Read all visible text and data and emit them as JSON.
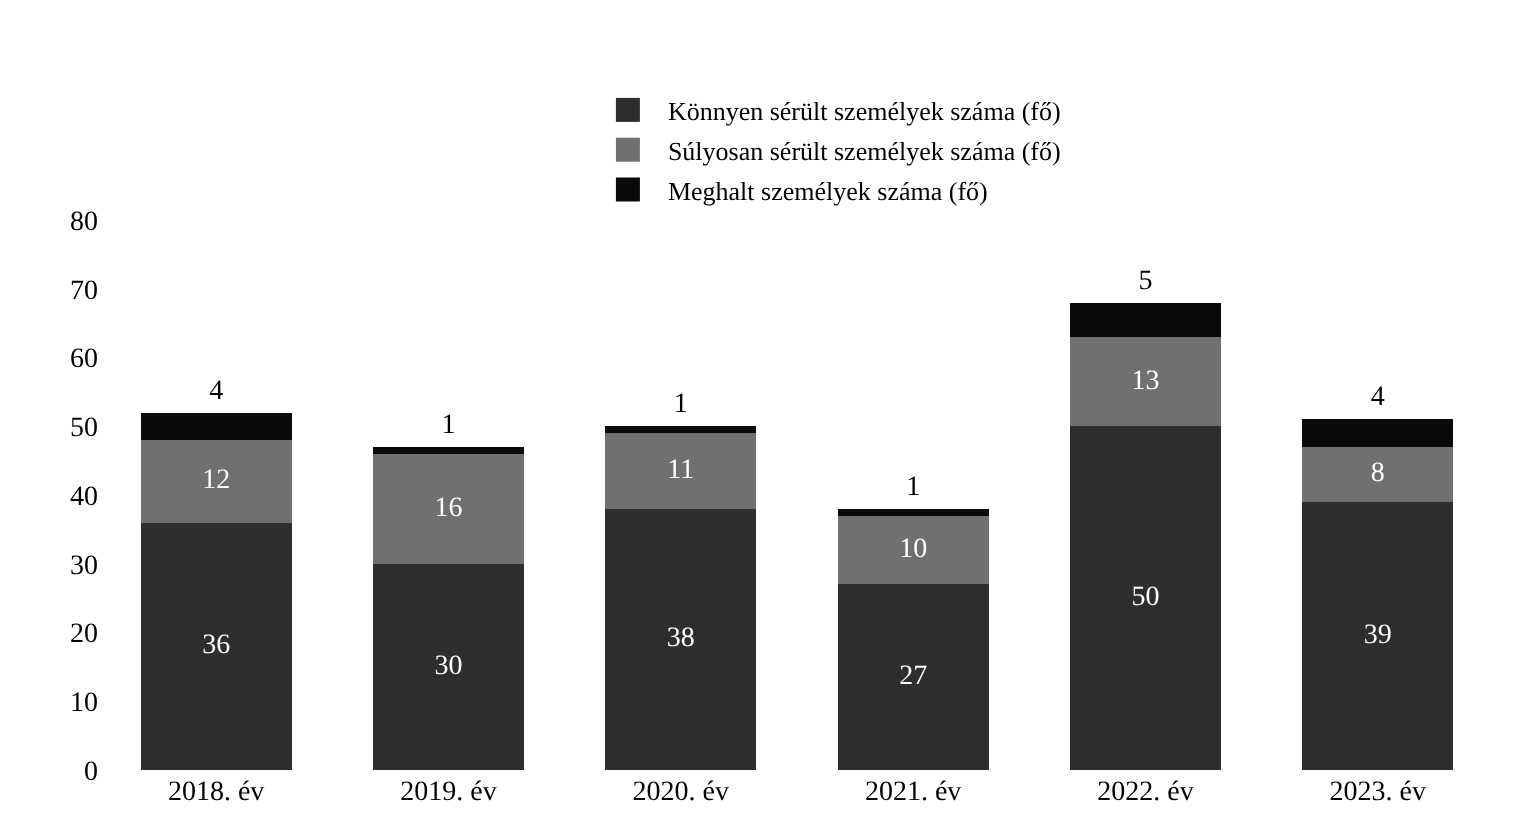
{
  "chart_data": {
    "type": "bar",
    "stacked": true,
    "categories": [
      "2018. év",
      "2019. év",
      "2020. év",
      "2021. év",
      "2022. év",
      "2023. év"
    ],
    "series": [
      {
        "name": "Könnyen sérült személyek száma (fő)",
        "color": "#2e2e2e",
        "values": [
          36,
          30,
          38,
          27,
          50,
          39
        ]
      },
      {
        "name": "Súlyosan sérült személyek száma (fő)",
        "color": "#707070",
        "values": [
          12,
          16,
          11,
          10,
          13,
          8
        ]
      },
      {
        "name": "Meghalt személyek száma (fő)",
        "color": "#0a0a0a",
        "values": [
          4,
          1,
          1,
          1,
          5,
          4
        ]
      }
    ],
    "ylim": [
      0,
      80
    ],
    "yticks": [
      0,
      10,
      20,
      30,
      40,
      50,
      60,
      70,
      80
    ],
    "data_labels": true,
    "legend": "top"
  }
}
